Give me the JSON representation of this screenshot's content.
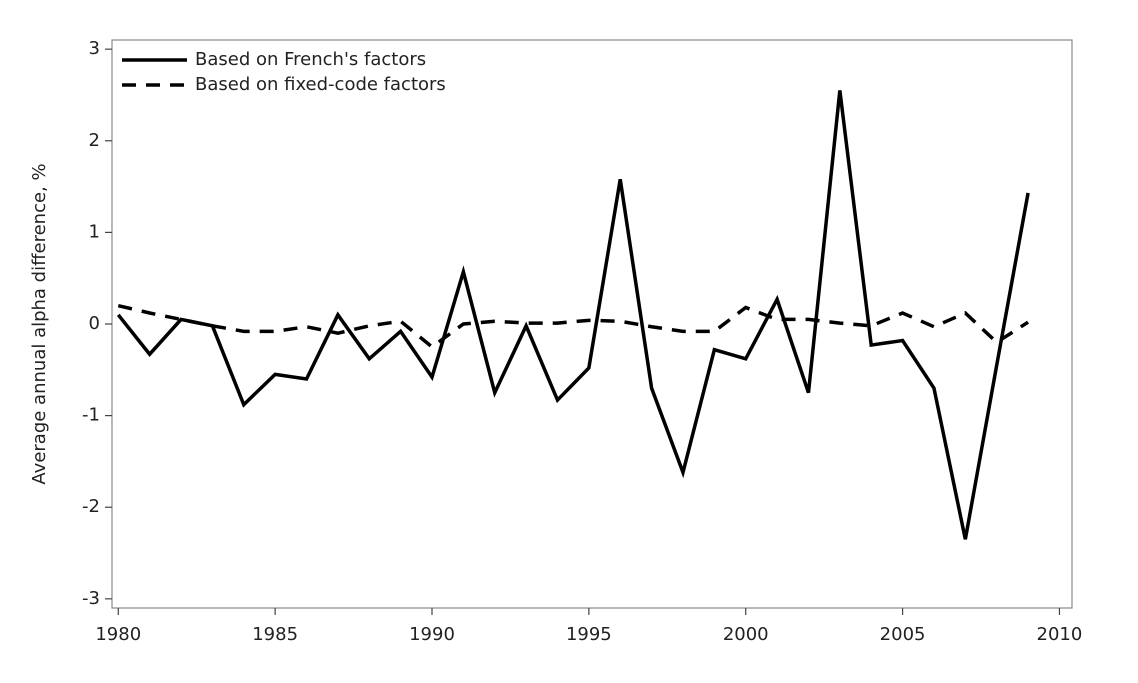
{
  "chart_data": {
    "type": "line",
    "y_label": "Average annual alpha difference, %",
    "x": [
      1980,
      1981,
      1982,
      1983,
      1984,
      1985,
      1986,
      1987,
      1988,
      1989,
      1990,
      1991,
      1992,
      1993,
      1994,
      1995,
      1996,
      1997,
      1998,
      1999,
      2000,
      2001,
      2002,
      2003,
      2004,
      2005,
      2006,
      2007,
      2008,
      2009
    ],
    "series": [
      {
        "name": "Based on French's factors",
        "color": "#000000",
        "dash": "solid",
        "values": [
          0.1,
          -0.33,
          0.05,
          -0.02,
          -0.88,
          -0.55,
          -0.6,
          0.1,
          -0.38,
          -0.08,
          -0.58,
          0.57,
          -0.75,
          -0.02,
          -0.83,
          -0.48,
          1.58,
          -0.7,
          -1.62,
          -0.28,
          -0.38,
          0.27,
          -0.75,
          2.55,
          -0.23,
          -0.18,
          -0.7,
          -2.35,
          -0.45,
          1.43
        ]
      },
      {
        "name": "Based on fixed-code factors",
        "color": "#000000",
        "dash": "dashed",
        "values": [
          0.2,
          0.12,
          0.05,
          -0.02,
          -0.08,
          -0.08,
          -0.03,
          -0.1,
          -0.02,
          0.03,
          -0.25,
          0.0,
          0.03,
          0.01,
          0.01,
          0.04,
          0.03,
          -0.03,
          -0.08,
          -0.08,
          0.18,
          0.05,
          0.05,
          0.01,
          -0.02,
          0.12,
          -0.03,
          0.12,
          -0.2,
          0.02
        ]
      }
    ],
    "xlim": [
      1979.8,
      2010.4
    ],
    "xticks": [
      1980,
      1985,
      1990,
      1995,
      2000,
      2005,
      2010
    ],
    "ylim": [
      -3.1,
      3.1
    ],
    "yticks": [
      -3,
      -2,
      -1,
      0,
      1,
      2,
      3
    ],
    "legend": "top-left",
    "grid": false
  }
}
